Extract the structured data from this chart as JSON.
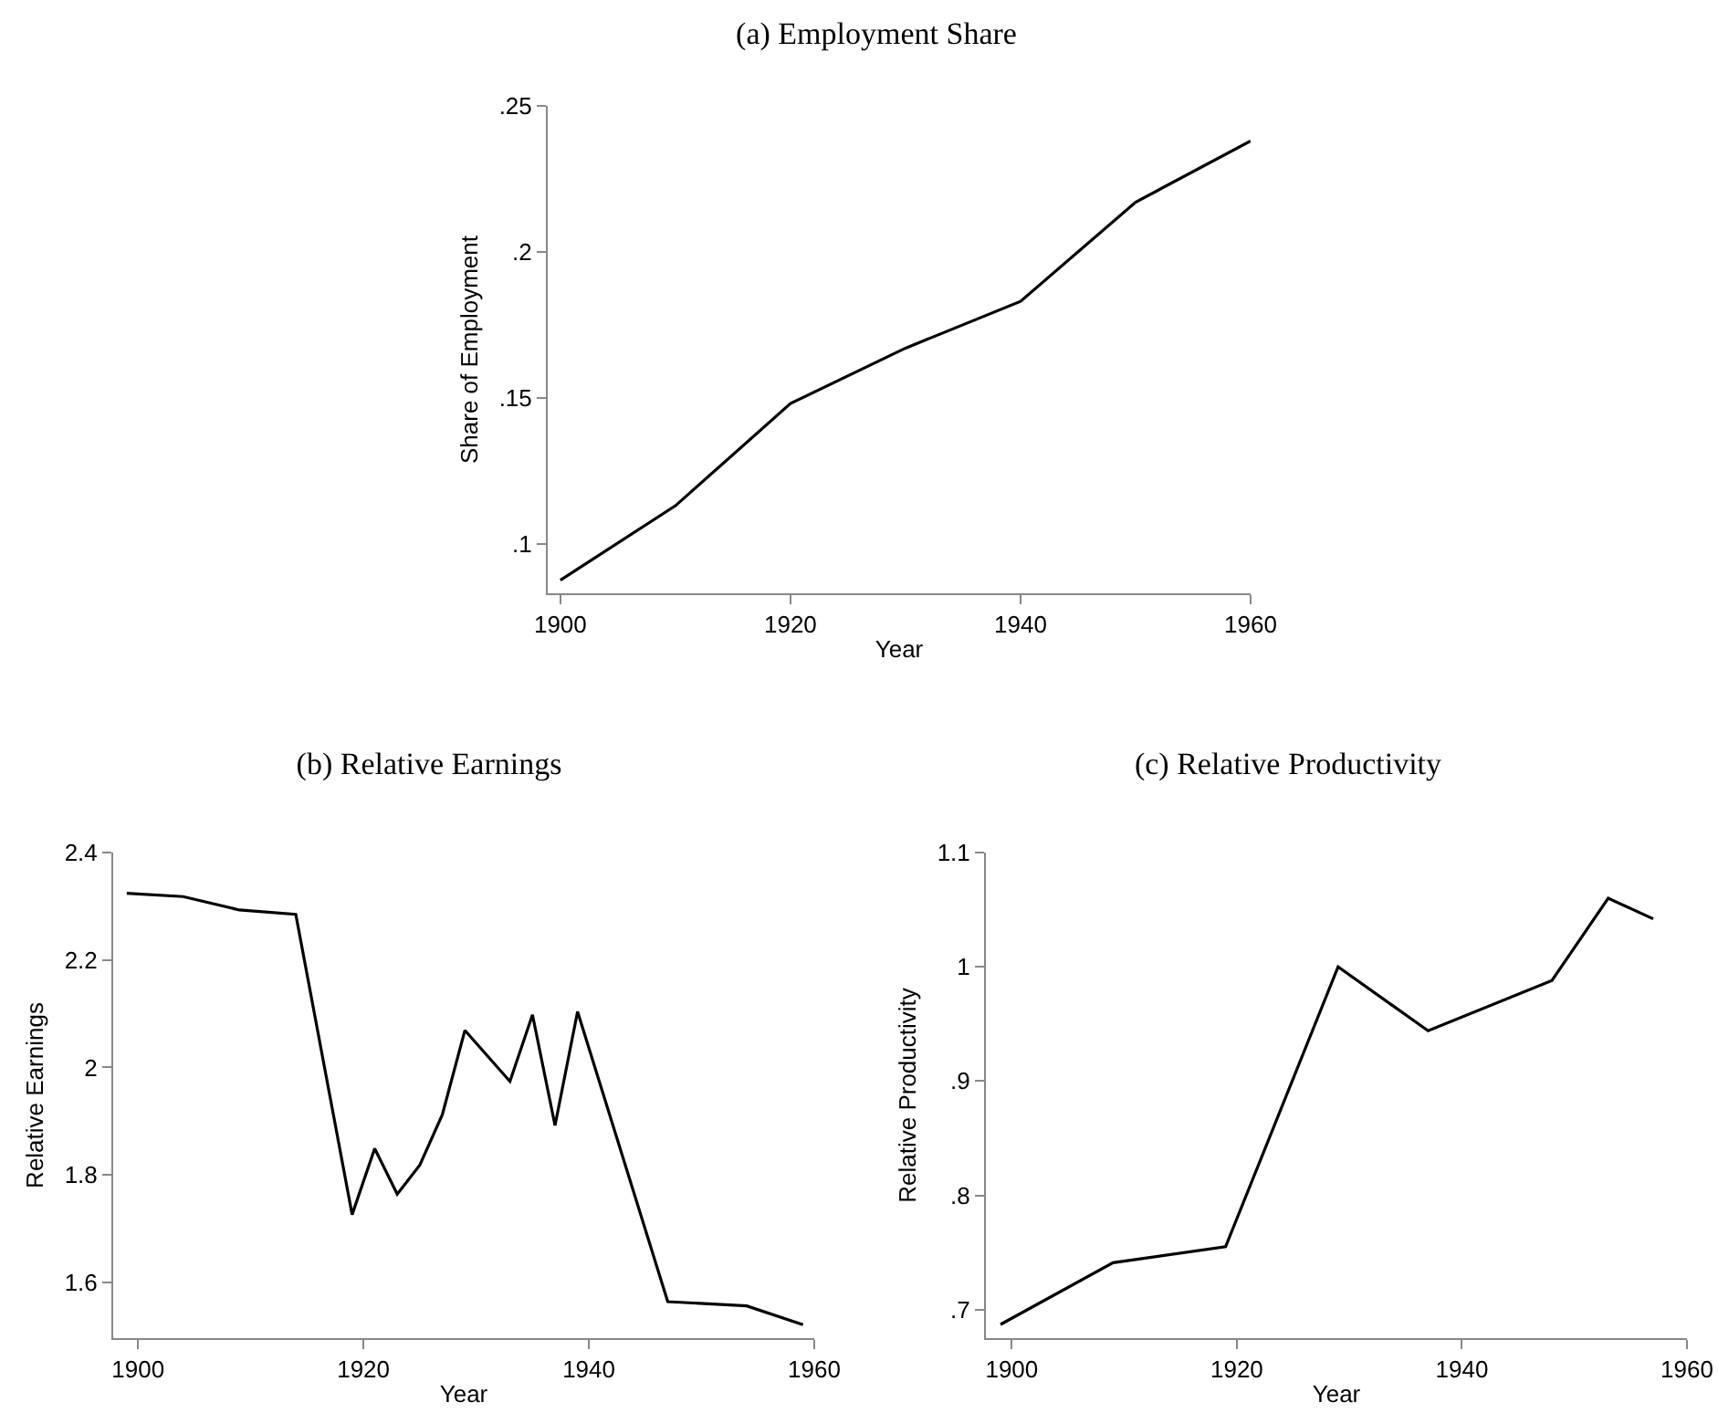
{
  "chart_data": [
    {
      "type": "line",
      "title": "(a) Employment Share",
      "xlabel": "Year",
      "ylabel": "Share of Employment",
      "color": "#000000",
      "x": [
        1900,
        1910,
        1920,
        1930,
        1940,
        1950,
        1960
      ],
      "values": [
        0.0875,
        0.113,
        0.148,
        0.167,
        0.183,
        0.217,
        0.238
      ],
      "xlim": [
        1898.9,
        1960
      ],
      "xticks": [
        1900,
        1920,
        1940,
        1960
      ],
      "ylim": [
        0.083,
        0.25
      ],
      "yticks": [
        {
          "value": 0.1,
          "label": ".1"
        },
        {
          "value": 0.15,
          "label": ".15"
        },
        {
          "value": 0.2,
          "label": ".2"
        },
        {
          "value": 0.25,
          "label": ".25"
        }
      ]
    },
    {
      "type": "line",
      "title": "(b) Relative Earnings",
      "xlabel": "Year",
      "ylabel": "Relative Earnings",
      "color": "#000000",
      "x": [
        1899,
        1904,
        1909,
        1914,
        1919,
        1921,
        1923,
        1925,
        1927,
        1929,
        1933,
        1935,
        1937,
        1939,
        1947,
        1954,
        1959
      ],
      "values": [
        2.324,
        2.318,
        2.293,
        2.285,
        1.726,
        1.849,
        1.764,
        1.818,
        1.912,
        2.069,
        1.974,
        2.098,
        1.892,
        2.104,
        1.564,
        1.556,
        1.521
      ],
      "xlim": [
        1897.8,
        1960
      ],
      "xticks": [
        1900,
        1920,
        1940,
        1960
      ],
      "ylim": [
        1.496,
        2.4
      ],
      "yticks": [
        1.6,
        1.8,
        2,
        2.2,
        2.4
      ]
    },
    {
      "type": "line",
      "title": "(c) Relative Productivity",
      "xlabel": "Year",
      "ylabel": "Relative Productivity",
      "color": "#000000",
      "x": [
        1899,
        1909,
        1919,
        1929,
        1937,
        1948,
        1953,
        1957
      ],
      "values": [
        0.687,
        0.741,
        0.755,
        1.0,
        0.944,
        0.988,
        1.06,
        1.042
      ],
      "xlim": [
        1897.7,
        1960
      ],
      "xticks": [
        1900,
        1920,
        1940,
        1960
      ],
      "ylim": [
        0.675,
        1.1
      ],
      "yticks": [
        {
          "value": 0.7,
          "label": ".7"
        },
        {
          "value": 0.8,
          "label": ".8"
        },
        {
          "value": 0.9,
          "label": ".9"
        },
        1,
        1.1
      ]
    }
  ]
}
